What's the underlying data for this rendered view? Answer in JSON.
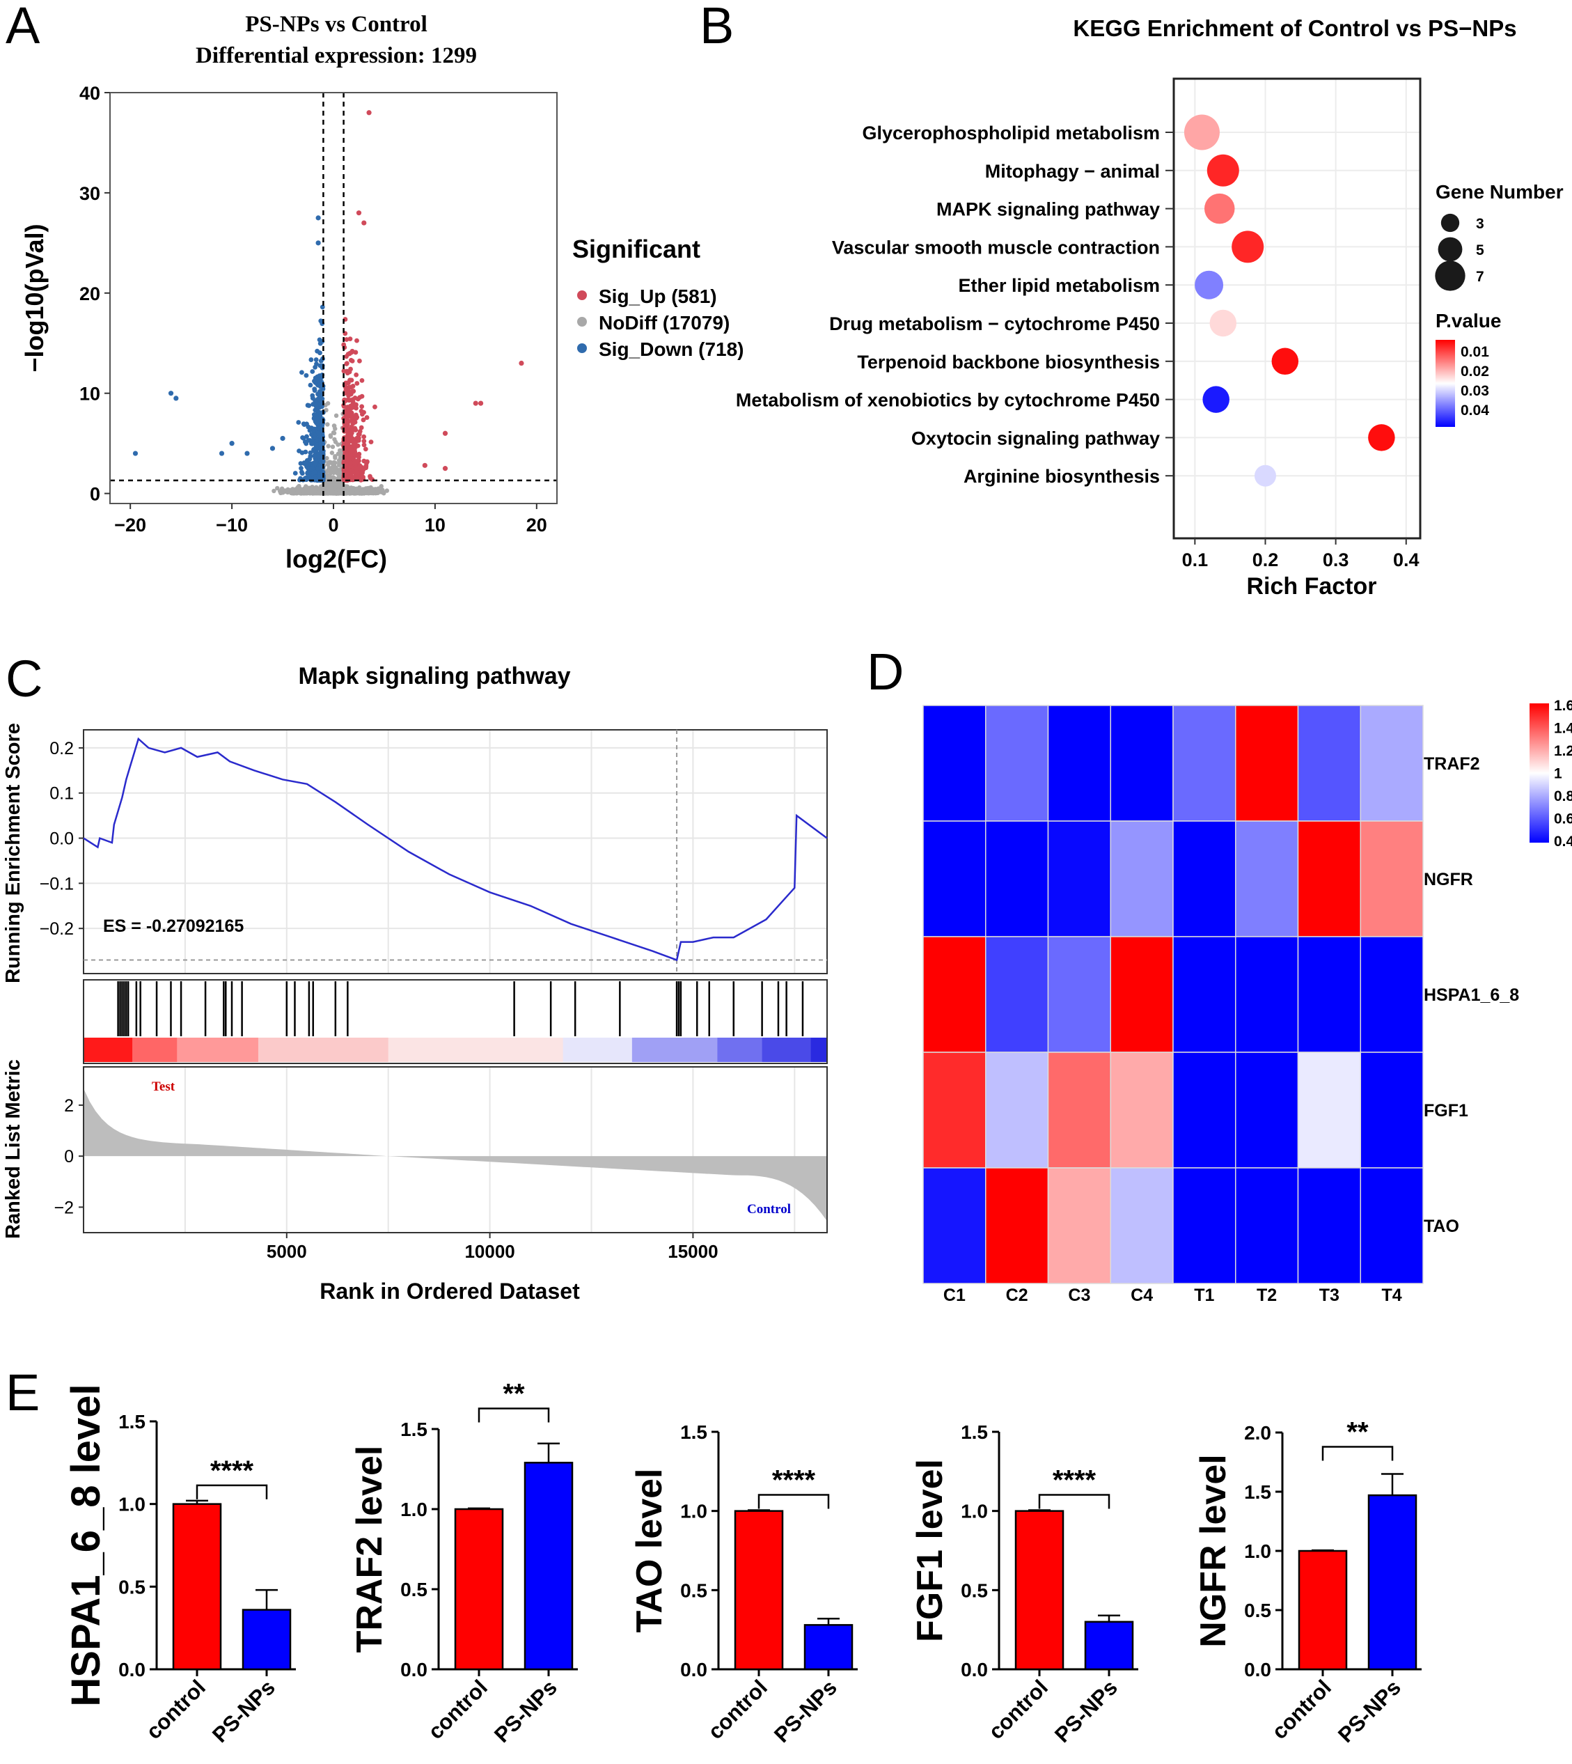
{
  "panel_letters": [
    "A",
    "B",
    "C",
    "D",
    "E"
  ],
  "chart_data": [
    {
      "panel": "A",
      "type": "scatter",
      "title": "PS-NPs vs Control",
      "subtitle": "Differential expression: 1299",
      "xlabel": "log2(FC)",
      "ylabel": "−log10(pVal)",
      "xlim": [
        -22,
        22
      ],
      "ylim": [
        -1,
        40
      ],
      "xticks": [
        -20,
        -10,
        0,
        10,
        20
      ],
      "xtick_labels": [
        "−20",
        "−10",
        "0",
        "10",
        "20"
      ],
      "yticks": [
        0,
        10,
        20,
        30,
        40
      ],
      "thresholds": {
        "log2fc": [
          -1,
          1
        ],
        "neglog10p": 1.3
      },
      "legend": {
        "title": "Significant",
        "entries": [
          {
            "label": "Sig_Up (581)",
            "color": "#d04a5a"
          },
          {
            "label": "NoDiff (17079)",
            "color": "#a8a8a8"
          },
          {
            "label": "Sig_Down (718)",
            "color": "#2f6bad"
          }
        ]
      },
      "outliers": {
        "up": [
          [
            3.5,
            38
          ],
          [
            2.5,
            28
          ],
          [
            3,
            27
          ],
          [
            18.5,
            13
          ],
          [
            14,
            9
          ],
          [
            14.5,
            9
          ],
          [
            11,
            6
          ],
          [
            9,
            2.8
          ],
          [
            11,
            2.5
          ]
        ],
        "down": [
          [
            -1.5,
            27.5
          ],
          [
            -1.5,
            25
          ],
          [
            -16,
            10
          ],
          [
            -15.5,
            9.5
          ],
          [
            -19.5,
            4
          ],
          [
            -10,
            5
          ],
          [
            -11,
            4
          ],
          [
            -8.5,
            4
          ],
          [
            -6,
            4.5
          ],
          [
            -5,
            5.5
          ]
        ]
      },
      "colors": {
        "up": "#d04a5a",
        "nodiff": "#a8a8a8",
        "down": "#2f6bad"
      }
    },
    {
      "panel": "B",
      "type": "scatter",
      "title": "KEGG Enrichment of Control vs PS−NPs",
      "xlabel": "Rich Factor",
      "xlim": [
        0.07,
        0.42
      ],
      "xticks": [
        0.1,
        0.2,
        0.3,
        0.4
      ],
      "xtick_labels": [
        "0.1",
        "0.2",
        "0.3",
        "0.4"
      ],
      "terms": [
        {
          "name": "Glycerophospholipid metabolism",
          "rich": 0.11,
          "genes": 7,
          "p": 0.018
        },
        {
          "name": "Mitophagy − animal",
          "rich": 0.14,
          "genes": 6,
          "p": 0.008
        },
        {
          "name": "MAPK signaling pathway",
          "rich": 0.135,
          "genes": 5.5,
          "p": 0.014
        },
        {
          "name": "Vascular smooth muscle contraction",
          "rich": 0.175,
          "genes": 6,
          "p": 0.008
        },
        {
          "name": "Ether lipid metabolism",
          "rich": 0.12,
          "genes": 5,
          "p": 0.035
        },
        {
          "name": "Drug metabolism − cytochrome P450",
          "rich": 0.14,
          "genes": 4.5,
          "p": 0.022
        },
        {
          "name": "Terpenoid backbone biosynthesis",
          "rich": 0.228,
          "genes": 4.5,
          "p": 0.006
        },
        {
          "name": "Metabolism of xenobiotics by cytochrome P450",
          "rich": 0.13,
          "genes": 4.5,
          "p": 0.043
        },
        {
          "name": "Oxytocin signaling pathway",
          "rich": 0.365,
          "genes": 4.5,
          "p": 0.006
        },
        {
          "name": "Arginine biosynthesis",
          "rich": 0.2,
          "genes": 3,
          "p": 0.028
        }
      ],
      "size_legend": {
        "title": "Gene Number",
        "values": [
          "3",
          "5",
          "7"
        ]
      },
      "color_legend": {
        "title": "P.value",
        "labels": [
          "0.01",
          "0.02",
          "0.03",
          "0.04"
        ],
        "range": [
          0.005,
          0.045
        ],
        "low_color": "#ff0000",
        "mid_color": "#ffffff",
        "high_color": "#0000ff"
      }
    },
    {
      "panel": "C",
      "type": "line",
      "title": "Mapk signaling pathway",
      "ylabel": "Running Enrichment Score",
      "ylabel2": "Ranked List Metric",
      "xlabel": "Rank in Ordered Dataset",
      "es_label": "ES = -0.27092165",
      "xlim": [
        0,
        18300
      ],
      "ylim": [
        -0.3,
        0.24
      ],
      "yticks": [
        0.2,
        0.1,
        0.0,
        -0.1,
        -0.2
      ],
      "ytick_labels": [
        "0.2",
        "0.1",
        "0.0",
        "−0.1",
        "−0.2"
      ],
      "xticks": [
        5000,
        10000,
        15000
      ],
      "xtick_labels": [
        "5000",
        "10000",
        "15000"
      ],
      "metric_yticks": [
        2,
        0,
        -2
      ],
      "metric_ytick_labels": [
        "2",
        "0",
        "−2"
      ],
      "metric_ylim": [
        -3,
        3.5
      ],
      "test_label": "Test",
      "control_label": "Control",
      "es_curve": [
        [
          0,
          0
        ],
        [
          350,
          -0.02
        ],
        [
          400,
          0
        ],
        [
          700,
          -0.01
        ],
        [
          750,
          0.03
        ],
        [
          850,
          0.06
        ],
        [
          950,
          0.09
        ],
        [
          1050,
          0.13
        ],
        [
          1150,
          0.16
        ],
        [
          1250,
          0.19
        ],
        [
          1350,
          0.22
        ],
        [
          1600,
          0.2
        ],
        [
          2000,
          0.19
        ],
        [
          2400,
          0.2
        ],
        [
          2800,
          0.18
        ],
        [
          3300,
          0.19
        ],
        [
          3600,
          0.17
        ],
        [
          4200,
          0.15
        ],
        [
          4900,
          0.13
        ],
        [
          5500,
          0.12
        ],
        [
          6200,
          0.08
        ],
        [
          7000,
          0.03
        ],
        [
          8000,
          -0.03
        ],
        [
          9000,
          -0.08
        ],
        [
          10000,
          -0.12
        ],
        [
          11000,
          -0.15
        ],
        [
          12000,
          -0.19
        ],
        [
          13000,
          -0.22
        ],
        [
          14000,
          -0.25
        ],
        [
          14600,
          -0.27
        ],
        [
          14700,
          -0.23
        ],
        [
          15000,
          -0.23
        ],
        [
          15500,
          -0.22
        ],
        [
          16000,
          -0.22
        ],
        [
          16800,
          -0.18
        ],
        [
          17200,
          -0.14
        ],
        [
          17500,
          -0.11
        ],
        [
          17550,
          0.05
        ],
        [
          18300,
          0.0
        ]
      ],
      "hit_ranks": [
        850,
        900,
        950,
        1000,
        1050,
        1100,
        1300,
        1400,
        1800,
        2150,
        2400,
        3000,
        3450,
        3500,
        3650,
        3900,
        5000,
        5200,
        5550,
        5650,
        6200,
        6500,
        10600,
        11500,
        12100,
        13200,
        14600,
        14650,
        14700,
        15100,
        15400,
        16000,
        16700,
        17100,
        17300,
        17700
      ],
      "es_min_rank": 14600,
      "es_min_value": -0.27
    },
    {
      "panel": "D",
      "type": "heatmap",
      "columns": [
        "C1",
        "C2",
        "C3",
        "C4",
        "T1",
        "T2",
        "T3",
        "T4"
      ],
      "rows": [
        "TRAF2",
        "NGFR",
        "HSPA1_6_8",
        "FGF1",
        "TAO"
      ],
      "values": [
        [
          0.4,
          0.65,
          0.4,
          0.4,
          0.65,
          1.6,
          0.6,
          0.8
        ],
        [
          0.4,
          0.4,
          0.42,
          0.75,
          0.4,
          0.7,
          1.6,
          1.3
        ],
        [
          1.6,
          0.55,
          0.65,
          1.6,
          0.4,
          0.4,
          0.4,
          0.4
        ],
        [
          1.5,
          0.85,
          1.35,
          1.2,
          0.4,
          0.4,
          0.95,
          0.4
        ],
        [
          0.45,
          1.6,
          1.2,
          0.85,
          0.4,
          0.4,
          0.4,
          0.4
        ]
      ],
      "colorbar_labels": [
        "1.6",
        "1.4",
        "1.2",
        "1",
        "0.8",
        "0.6",
        "0.4"
      ],
      "range": [
        0.4,
        1.6
      ],
      "low_color": "#0000ff",
      "mid_color": "#ffffff",
      "high_color": "#ff0000"
    },
    {
      "panel": "E1",
      "type": "bar",
      "ylabel": "HSPA1_6_8 level",
      "categories": [
        "control",
        "PS-NPs"
      ],
      "values": [
        1.0,
        0.36
      ],
      "errors": [
        0.02,
        0.12
      ],
      "ylim": [
        0,
        1.5
      ],
      "yticks": [
        0.0,
        0.5,
        1.0,
        1.5
      ],
      "ytick_labels": [
        "0.0",
        "0.5",
        "1.0",
        "1.5"
      ],
      "significance": "****"
    },
    {
      "panel": "E2",
      "type": "bar",
      "ylabel": "TRAF2 level",
      "categories": [
        "control",
        "PS-NPs"
      ],
      "values": [
        1.0,
        1.29
      ],
      "errors": [
        0.005,
        0.12
      ],
      "ylim": [
        0,
        1.5
      ],
      "yticks": [
        0.0,
        0.5,
        1.0,
        1.5
      ],
      "ytick_labels": [
        "0.0",
        "0.5",
        "1.0",
        "1.5"
      ],
      "significance": "**"
    },
    {
      "panel": "E3",
      "type": "bar",
      "ylabel": "TAO level",
      "categories": [
        "control",
        "PS-NPs"
      ],
      "values": [
        1.0,
        0.28
      ],
      "errors": [
        0.005,
        0.04
      ],
      "ylim": [
        0,
        1.5
      ],
      "yticks": [
        0.0,
        0.5,
        1.0,
        1.5
      ],
      "ytick_labels": [
        "0.0",
        "0.5",
        "1.0",
        "1.5"
      ],
      "significance": "****"
    },
    {
      "panel": "E4",
      "type": "bar",
      "ylabel": "FGF1 level",
      "categories": [
        "control",
        "PS-NPs"
      ],
      "values": [
        1.0,
        0.3
      ],
      "errors": [
        0.005,
        0.04
      ],
      "ylim": [
        0,
        1.5
      ],
      "yticks": [
        0.0,
        0.5,
        1.0,
        1.5
      ],
      "ytick_labels": [
        "0.0",
        "0.5",
        "1.0",
        "1.5"
      ],
      "significance": "****"
    },
    {
      "panel": "E5",
      "type": "bar",
      "ylabel": "NGFR level",
      "categories": [
        "control",
        "PS-NPs"
      ],
      "values": [
        1.0,
        1.47
      ],
      "errors": [
        0.005,
        0.18
      ],
      "ylim": [
        0,
        2.0
      ],
      "yticks": [
        0.0,
        0.5,
        1.0,
        1.5,
        2.0
      ],
      "ytick_labels": [
        "0.0",
        "0.5",
        "1.0",
        "1.5",
        "2.0"
      ],
      "significance": "**"
    }
  ],
  "bar_colors": {
    "control": "#ff0000",
    "treated": "#0000ff"
  }
}
